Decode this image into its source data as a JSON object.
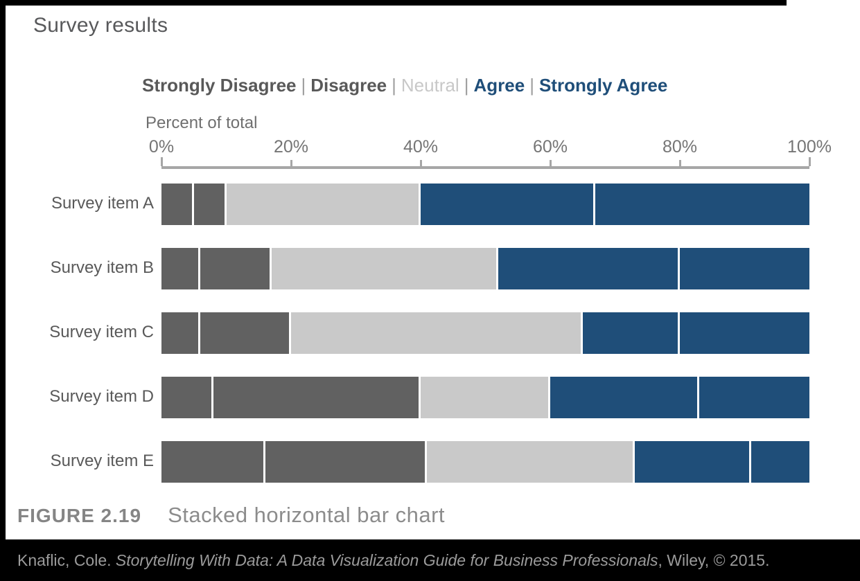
{
  "chart_data": {
    "type": "bar",
    "subtype": "stacked-horizontal-100pct",
    "title": "Survey results",
    "axis_title": "Percent of total",
    "categories": [
      "Survey item A",
      "Survey item B",
      "Survey item C",
      "Survey item D",
      "Survey item E"
    ],
    "series": [
      {
        "name": "Strongly Disagree",
        "color": "#616161",
        "values": [
          5,
          6,
          6,
          8,
          16
        ]
      },
      {
        "name": "Disagree",
        "color": "#616161",
        "values": [
          5,
          11,
          14,
          32,
          25
        ]
      },
      {
        "name": "Neutral",
        "color": "#c9c9c9",
        "values": [
          30,
          35,
          45,
          20,
          32
        ]
      },
      {
        "name": "Agree",
        "color": "#1f4e79",
        "values": [
          27,
          28,
          15,
          23,
          18
        ]
      },
      {
        "name": "Strongly Agree",
        "color": "#1f4e79",
        "values": [
          33,
          20,
          20,
          17,
          9
        ]
      }
    ],
    "x_ticks": [
      "0%",
      "20%",
      "40%",
      "60%",
      "80%",
      "100%"
    ],
    "xlim": [
      0,
      100
    ],
    "grid": false,
    "legend_position": "top"
  },
  "legend": {
    "separator": "|",
    "items": [
      {
        "label": "Strongly Disagree",
        "color": "#595959",
        "bold": true
      },
      {
        "label": "Disagree",
        "color": "#595959",
        "bold": true
      },
      {
        "label": "Neutral",
        "color": "#c8c8c8",
        "bold": false
      },
      {
        "label": "Agree",
        "color": "#1f4e79",
        "bold": true
      },
      {
        "label": "Strongly Agree",
        "color": "#1f4e79",
        "bold": true
      }
    ]
  },
  "caption": {
    "label": "FIGURE 2.19",
    "title": "Stacked horizontal bar chart"
  },
  "footer": {
    "author": "Knaflic, Cole. ",
    "book_title": "Storytelling With Data: A Data Visualization Guide for Business Professionals",
    "suffix": ", Wiley, © 2015."
  },
  "colors": {
    "bar_dark_gray": "#616161",
    "bar_light_gray": "#c9c9c9",
    "bar_blue": "#1f4e79",
    "axis_line": "#a6a6a6",
    "footer_bg": "#000000"
  }
}
